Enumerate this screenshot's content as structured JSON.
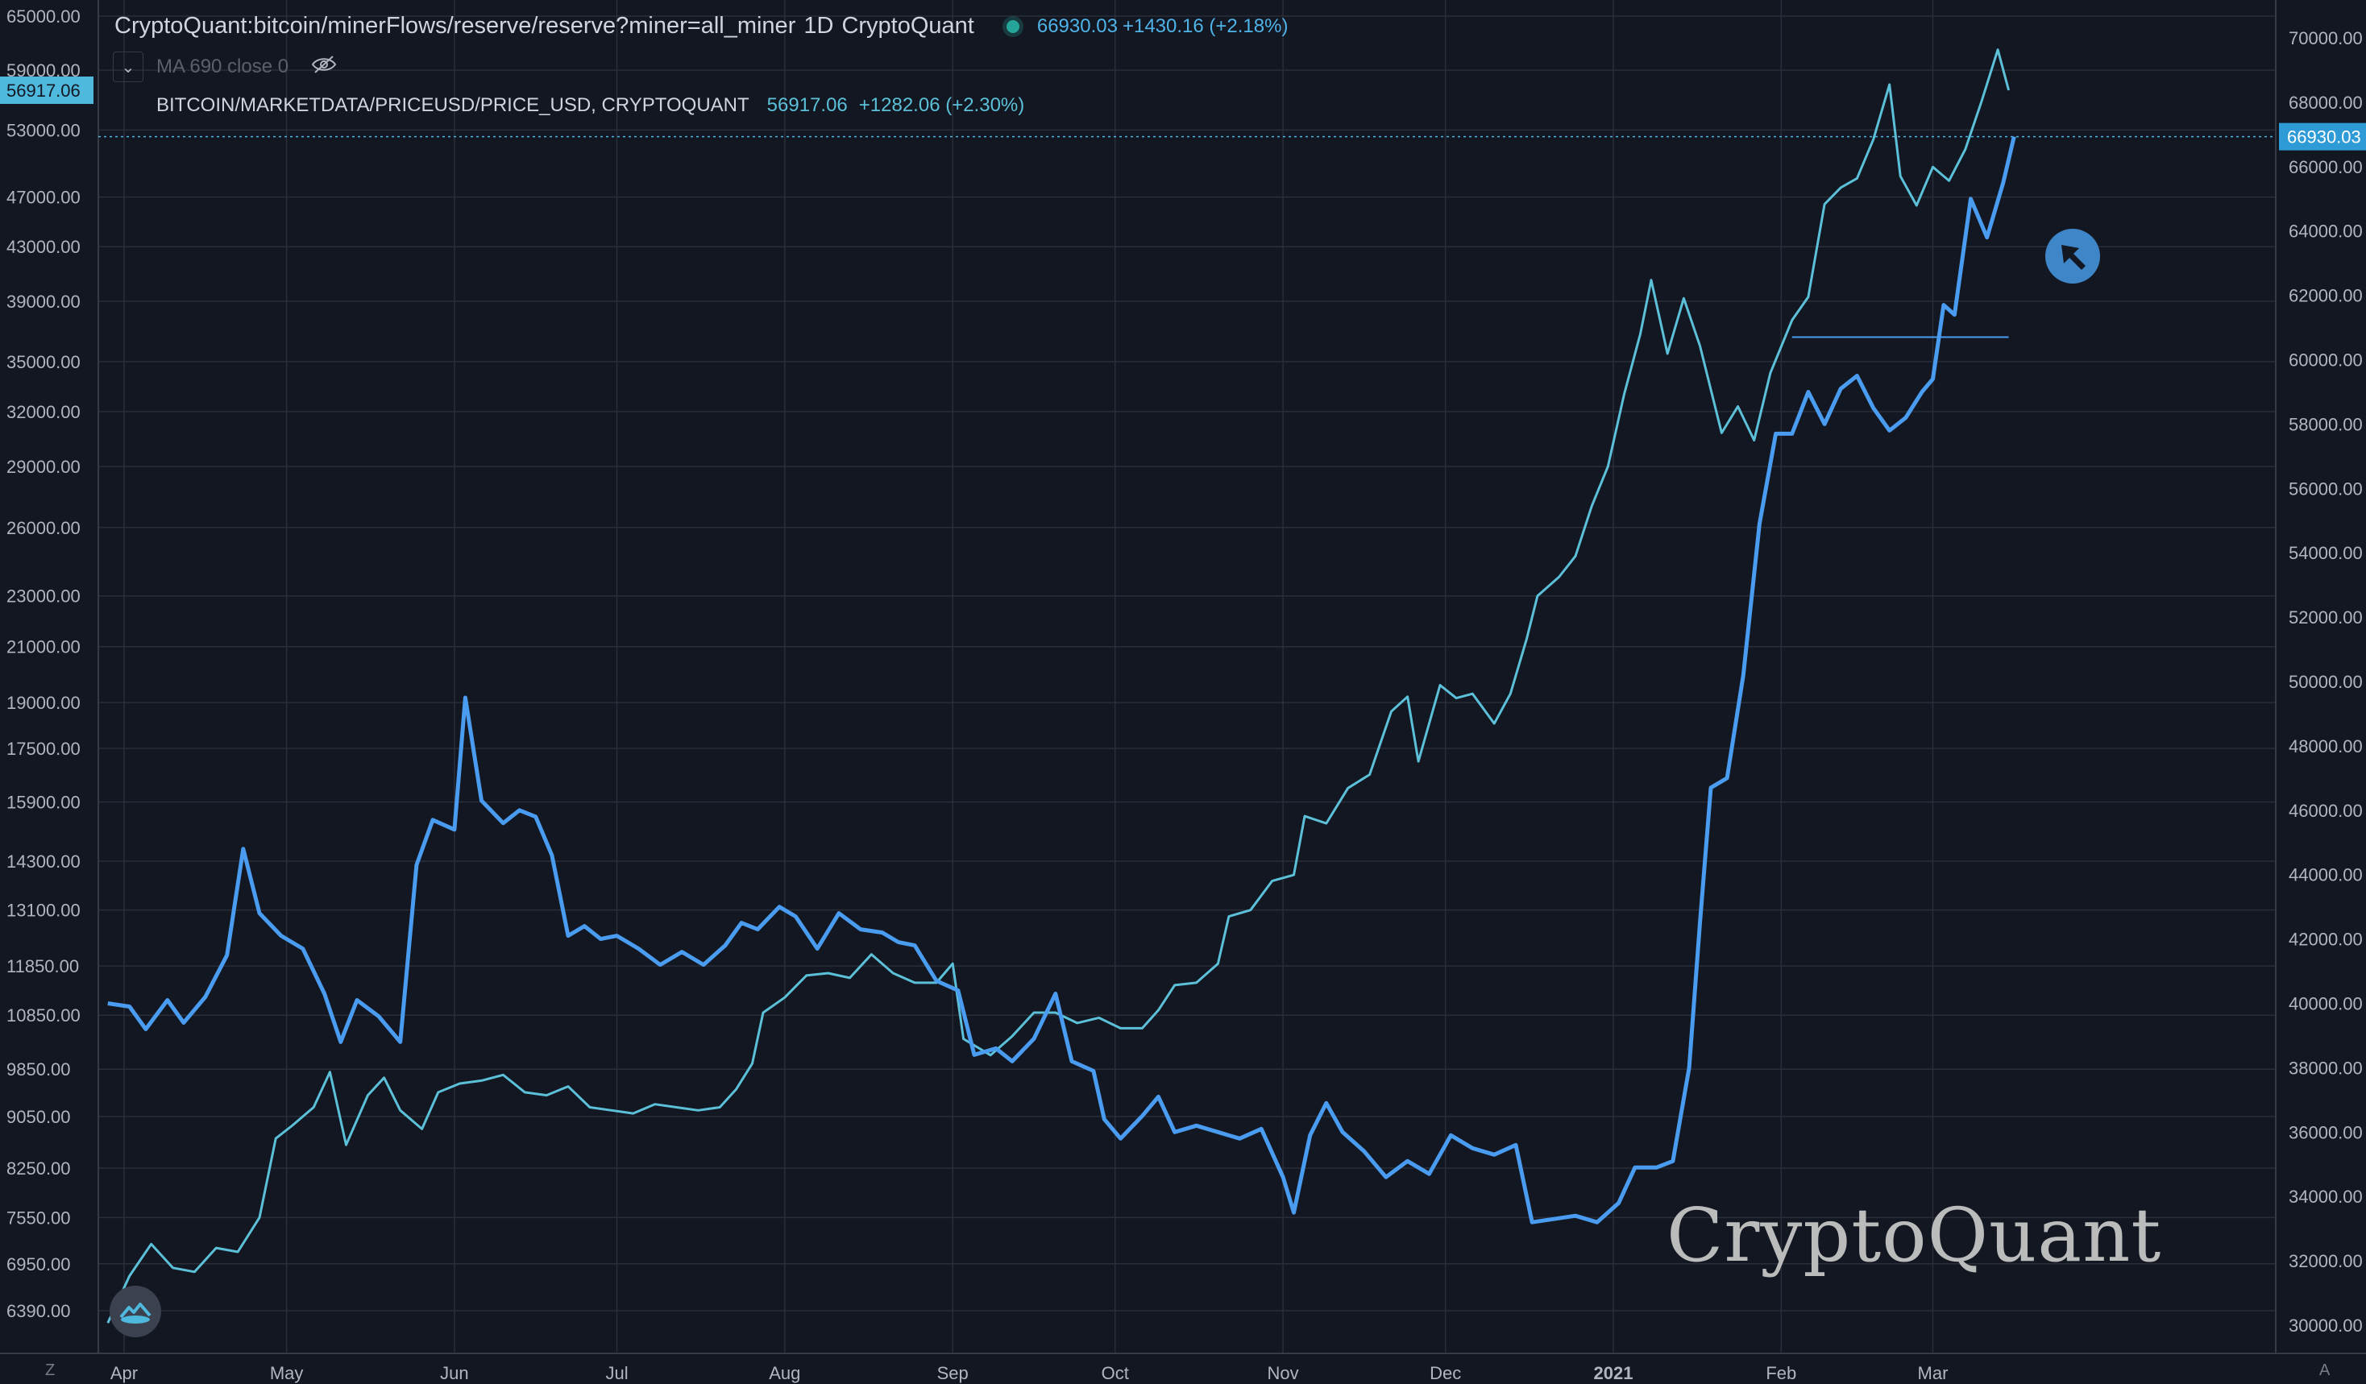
{
  "legend": {
    "main_title": "CryptoQuant:bitcoin/minerFlows/reserve/reserve?miner=all_miner",
    "interval": "1D",
    "source": "CryptoQuant",
    "main_value": "66930.03",
    "main_change": "+1430.16 (+2.18%)",
    "ma_label": "MA 690 close 0",
    "second_title": "BITCOIN/MARKETDATA/PRICEUSD/PRICE_USD, CRYPTOQUANT",
    "second_value": "56917.06",
    "second_change": "+1282.06 (+2.30%)"
  },
  "watermark": "CryptoQuant",
  "corner_left": "Z",
  "corner_right": "A",
  "colors": {
    "background": "#131722",
    "grid": "#2a2e39",
    "price_line": "#5bc0d8",
    "reserve_line": "#4a9cf0",
    "price_label_bg": "#4fb8dd",
    "reserve_label_bg": "#2e9bd6"
  },
  "chart_data": {
    "type": "line",
    "title": "CryptoQuant:bitcoin/minerFlows/reserve/reserve?miner=all_miner",
    "x_ticks": [
      "Apr",
      "May",
      "Jun",
      "Jul",
      "Aug",
      "Sep",
      "Oct",
      "Nov",
      "Dec",
      "2021",
      "Feb",
      "Mar"
    ],
    "x_tick_dates": [
      "2020-04-01",
      "2020-05-01",
      "2020-06-01",
      "2020-07-01",
      "2020-08-01",
      "2020-09-01",
      "2020-10-01",
      "2020-11-01",
      "2020-12-01",
      "2021-01-01",
      "2021-02-01",
      "2021-03-01"
    ],
    "left_axis": {
      "scale": "log",
      "ticks": [
        6390,
        6950,
        7550,
        8250,
        9050,
        9850,
        10850,
        11850,
        13100,
        14300,
        15900,
        17500,
        19000,
        21000,
        23000,
        26000,
        29000,
        32000,
        35000,
        39000,
        43000,
        47000,
        53000,
        59000,
        65000
      ],
      "tick_labels": [
        "6390.00",
        "6950.00",
        "7550.00",
        "8250.00",
        "9050.00",
        "9850.00",
        "10850.00",
        "11850.00",
        "13100.00",
        "14300.00",
        "15900.00",
        "17500.00",
        "19000.00",
        "21000.00",
        "23000.00",
        "26000.00",
        "29000.00",
        "32000.00",
        "35000.00",
        "39000.00",
        "43000.00",
        "47000.00",
        "53000.00",
        "59000.00",
        "65000.00"
      ],
      "current_label": "56917.06"
    },
    "right_axis": {
      "scale": "linear",
      "range": [
        29500,
        70600
      ],
      "ticks": [
        30000,
        32000,
        34000,
        36000,
        38000,
        40000,
        42000,
        44000,
        46000,
        48000,
        50000,
        52000,
        54000,
        56000,
        58000,
        60000,
        62000,
        64000,
        66000,
        68000,
        70000
      ],
      "tick_labels": [
        "30000.00",
        "32000.00",
        "34000.00",
        "36000.00",
        "38000.00",
        "40000.00",
        "42000.00",
        "44000.00",
        "46000.00",
        "48000.00",
        "50000.00",
        "52000.00",
        "54000.00",
        "56000.00",
        "58000.00",
        "60000.00",
        "62000.00",
        "64000.00",
        "66000.00",
        "68000.00",
        "70000.00"
      ],
      "current_label": "66930.03"
    },
    "series": [
      {
        "name": "BITCOIN/MARKETDATA/PRICEUSD/PRICE_USD",
        "axis": "left",
        "points": [
          [
            "2020-03-29",
            6250
          ],
          [
            "2020-04-02",
            6800
          ],
          [
            "2020-04-06",
            7200
          ],
          [
            "2020-04-10",
            6900
          ],
          [
            "2020-04-14",
            6850
          ],
          [
            "2020-04-18",
            7150
          ],
          [
            "2020-04-22",
            7100
          ],
          [
            "2020-04-26",
            7550
          ],
          [
            "2020-04-29",
            8700
          ],
          [
            "2020-05-02",
            8900
          ],
          [
            "2020-05-06",
            9200
          ],
          [
            "2020-05-09",
            9800
          ],
          [
            "2020-05-12",
            8600
          ],
          [
            "2020-05-16",
            9400
          ],
          [
            "2020-05-19",
            9700
          ],
          [
            "2020-05-22",
            9150
          ],
          [
            "2020-05-26",
            8850
          ],
          [
            "2020-05-29",
            9450
          ],
          [
            "2020-06-02",
            9600
          ],
          [
            "2020-06-06",
            9650
          ],
          [
            "2020-06-10",
            9750
          ],
          [
            "2020-06-14",
            9450
          ],
          [
            "2020-06-18",
            9400
          ],
          [
            "2020-06-22",
            9550
          ],
          [
            "2020-06-26",
            9200
          ],
          [
            "2020-06-30",
            9150
          ],
          [
            "2020-07-04",
            9100
          ],
          [
            "2020-07-08",
            9250
          ],
          [
            "2020-07-12",
            9200
          ],
          [
            "2020-07-16",
            9150
          ],
          [
            "2020-07-20",
            9200
          ],
          [
            "2020-07-23",
            9500
          ],
          [
            "2020-07-26",
            9950
          ],
          [
            "2020-07-28",
            10900
          ],
          [
            "2020-08-01",
            11200
          ],
          [
            "2020-08-05",
            11650
          ],
          [
            "2020-08-09",
            11700
          ],
          [
            "2020-08-13",
            11600
          ],
          [
            "2020-08-17",
            12100
          ],
          [
            "2020-08-21",
            11700
          ],
          [
            "2020-08-25",
            11500
          ],
          [
            "2020-08-29",
            11500
          ],
          [
            "2020-09-01",
            11900
          ],
          [
            "2020-09-03",
            10400
          ],
          [
            "2020-09-08",
            10100
          ],
          [
            "2020-09-12",
            10450
          ],
          [
            "2020-09-16",
            10900
          ],
          [
            "2020-09-20",
            10900
          ],
          [
            "2020-09-24",
            10700
          ],
          [
            "2020-09-28",
            10800
          ],
          [
            "2020-10-02",
            10600
          ],
          [
            "2020-10-06",
            10600
          ],
          [
            "2020-10-09",
            10950
          ],
          [
            "2020-10-12",
            11450
          ],
          [
            "2020-10-16",
            11500
          ],
          [
            "2020-10-20",
            11900
          ],
          [
            "2020-10-22",
            12950
          ],
          [
            "2020-10-26",
            13100
          ],
          [
            "2020-10-30",
            13800
          ],
          [
            "2020-11-03",
            13950
          ],
          [
            "2020-11-05",
            15500
          ],
          [
            "2020-11-09",
            15300
          ],
          [
            "2020-11-13",
            16300
          ],
          [
            "2020-11-17",
            16700
          ],
          [
            "2020-11-21",
            18700
          ],
          [
            "2020-11-24",
            19200
          ],
          [
            "2020-11-26",
            17100
          ],
          [
            "2020-11-30",
            19600
          ],
          [
            "2020-12-03",
            19150
          ],
          [
            "2020-12-06",
            19300
          ],
          [
            "2020-12-10",
            18300
          ],
          [
            "2020-12-13",
            19300
          ],
          [
            "2020-12-16",
            21300
          ],
          [
            "2020-12-18",
            23000
          ],
          [
            "2020-12-22",
            23800
          ],
          [
            "2020-12-25",
            24700
          ],
          [
            "2020-12-28",
            27000
          ],
          [
            "2020-12-31",
            29000
          ],
          [
            "2021-01-03",
            33000
          ],
          [
            "2021-01-06",
            36800
          ],
          [
            "2021-01-08",
            40500
          ],
          [
            "2021-01-11",
            35500
          ],
          [
            "2021-01-14",
            39200
          ],
          [
            "2021-01-17",
            36000
          ],
          [
            "2021-01-21",
            30800
          ],
          [
            "2021-01-24",
            32300
          ],
          [
            "2021-01-27",
            30400
          ],
          [
            "2021-01-30",
            34300
          ],
          [
            "2021-02-03",
            37700
          ],
          [
            "2021-02-06",
            39300
          ],
          [
            "2021-02-09",
            46400
          ],
          [
            "2021-02-12",
            47800
          ],
          [
            "2021-02-15",
            48600
          ],
          [
            "2021-02-18",
            52100
          ],
          [
            "2021-02-21",
            57500
          ],
          [
            "2021-02-23",
            48800
          ],
          [
            "2021-02-26",
            46300
          ],
          [
            "2021-03-01",
            49600
          ],
          [
            "2021-03-04",
            48400
          ],
          [
            "2021-03-07",
            51200
          ],
          [
            "2021-03-10",
            55800
          ],
          [
            "2021-03-13",
            61200
          ],
          [
            "2021-03-15",
            56917
          ]
        ]
      },
      {
        "name": "CryptoQuant:bitcoin/minerFlows/reserve/reserve?miner=all_miner",
        "axis": "right",
        "points": [
          [
            "2020-03-29",
            40000
          ],
          [
            "2020-04-02",
            39900
          ],
          [
            "2020-04-05",
            39200
          ],
          [
            "2020-04-09",
            40100
          ],
          [
            "2020-04-12",
            39400
          ],
          [
            "2020-04-16",
            40200
          ],
          [
            "2020-04-20",
            41500
          ],
          [
            "2020-04-23",
            44800
          ],
          [
            "2020-04-26",
            42800
          ],
          [
            "2020-04-30",
            42100
          ],
          [
            "2020-05-04",
            41700
          ],
          [
            "2020-05-08",
            40300
          ],
          [
            "2020-05-11",
            38800
          ],
          [
            "2020-05-14",
            40100
          ],
          [
            "2020-05-18",
            39600
          ],
          [
            "2020-05-22",
            38800
          ],
          [
            "2020-05-25",
            44300
          ],
          [
            "2020-05-28",
            45700
          ],
          [
            "2020-06-01",
            45400
          ],
          [
            "2020-06-03",
            49500
          ],
          [
            "2020-06-06",
            46300
          ],
          [
            "2020-06-10",
            45600
          ],
          [
            "2020-06-13",
            46000
          ],
          [
            "2020-06-16",
            45800
          ],
          [
            "2020-06-19",
            44600
          ],
          [
            "2020-06-22",
            42100
          ],
          [
            "2020-06-25",
            42400
          ],
          [
            "2020-06-28",
            42000
          ],
          [
            "2020-07-01",
            42100
          ],
          [
            "2020-07-05",
            41700
          ],
          [
            "2020-07-09",
            41200
          ],
          [
            "2020-07-13",
            41600
          ],
          [
            "2020-07-17",
            41200
          ],
          [
            "2020-07-21",
            41800
          ],
          [
            "2020-07-24",
            42500
          ],
          [
            "2020-07-27",
            42300
          ],
          [
            "2020-07-31",
            43000
          ],
          [
            "2020-08-03",
            42700
          ],
          [
            "2020-08-07",
            41700
          ],
          [
            "2020-08-11",
            42800
          ],
          [
            "2020-08-15",
            42300
          ],
          [
            "2020-08-19",
            42200
          ],
          [
            "2020-08-22",
            41900
          ],
          [
            "2020-08-25",
            41800
          ],
          [
            "2020-08-29",
            40700
          ],
          [
            "2020-09-02",
            40400
          ],
          [
            "2020-09-05",
            38400
          ],
          [
            "2020-09-09",
            38600
          ],
          [
            "2020-09-12",
            38200
          ],
          [
            "2020-09-16",
            38900
          ],
          [
            "2020-09-20",
            40300
          ],
          [
            "2020-09-23",
            38200
          ],
          [
            "2020-09-27",
            37900
          ],
          [
            "2020-09-29",
            36400
          ],
          [
            "2020-10-02",
            35800
          ],
          [
            "2020-10-06",
            36500
          ],
          [
            "2020-10-09",
            37100
          ],
          [
            "2020-10-12",
            36000
          ],
          [
            "2020-10-16",
            36200
          ],
          [
            "2020-10-20",
            36000
          ],
          [
            "2020-10-24",
            35800
          ],
          [
            "2020-10-28",
            36100
          ],
          [
            "2020-11-01",
            34600
          ],
          [
            "2020-11-03",
            33500
          ],
          [
            "2020-11-06",
            35900
          ],
          [
            "2020-11-09",
            36900
          ],
          [
            "2020-11-12",
            36000
          ],
          [
            "2020-11-16",
            35400
          ],
          [
            "2020-11-20",
            34600
          ],
          [
            "2020-11-24",
            35100
          ],
          [
            "2020-11-28",
            34700
          ],
          [
            "2020-12-02",
            35900
          ],
          [
            "2020-12-06",
            35500
          ],
          [
            "2020-12-10",
            35300
          ],
          [
            "2020-12-14",
            35600
          ],
          [
            "2020-12-17",
            33200
          ],
          [
            "2020-12-21",
            33300
          ],
          [
            "2020-12-25",
            33400
          ],
          [
            "2020-12-29",
            33200
          ],
          [
            "2021-01-02",
            33800
          ],
          [
            "2021-01-05",
            34900
          ],
          [
            "2021-01-09",
            34900
          ],
          [
            "2021-01-12",
            35100
          ],
          [
            "2021-01-15",
            38000
          ],
          [
            "2021-01-17",
            42500
          ],
          [
            "2021-01-19",
            46700
          ],
          [
            "2021-01-22",
            47000
          ],
          [
            "2021-01-25",
            50200
          ],
          [
            "2021-01-28",
            54900
          ],
          [
            "2021-01-31",
            57700
          ],
          [
            "2021-02-03",
            57700
          ],
          [
            "2021-02-06",
            59000
          ],
          [
            "2021-02-09",
            58000
          ],
          [
            "2021-02-12",
            59100
          ],
          [
            "2021-02-15",
            59500
          ],
          [
            "2021-02-18",
            58500
          ],
          [
            "2021-02-21",
            57800
          ],
          [
            "2021-02-24",
            58200
          ],
          [
            "2021-02-27",
            59000
          ],
          [
            "2021-03-01",
            59400
          ],
          [
            "2021-03-03",
            61700
          ],
          [
            "2021-03-05",
            61400
          ],
          [
            "2021-03-08",
            65000
          ],
          [
            "2021-03-11",
            63800
          ],
          [
            "2021-03-14",
            65500
          ],
          [
            "2021-03-16",
            66930
          ]
        ]
      }
    ],
    "reference_line": {
      "axis": "right",
      "value": 60700,
      "start": "2021-02-03",
      "end": "2021-03-15"
    },
    "grid": true
  }
}
